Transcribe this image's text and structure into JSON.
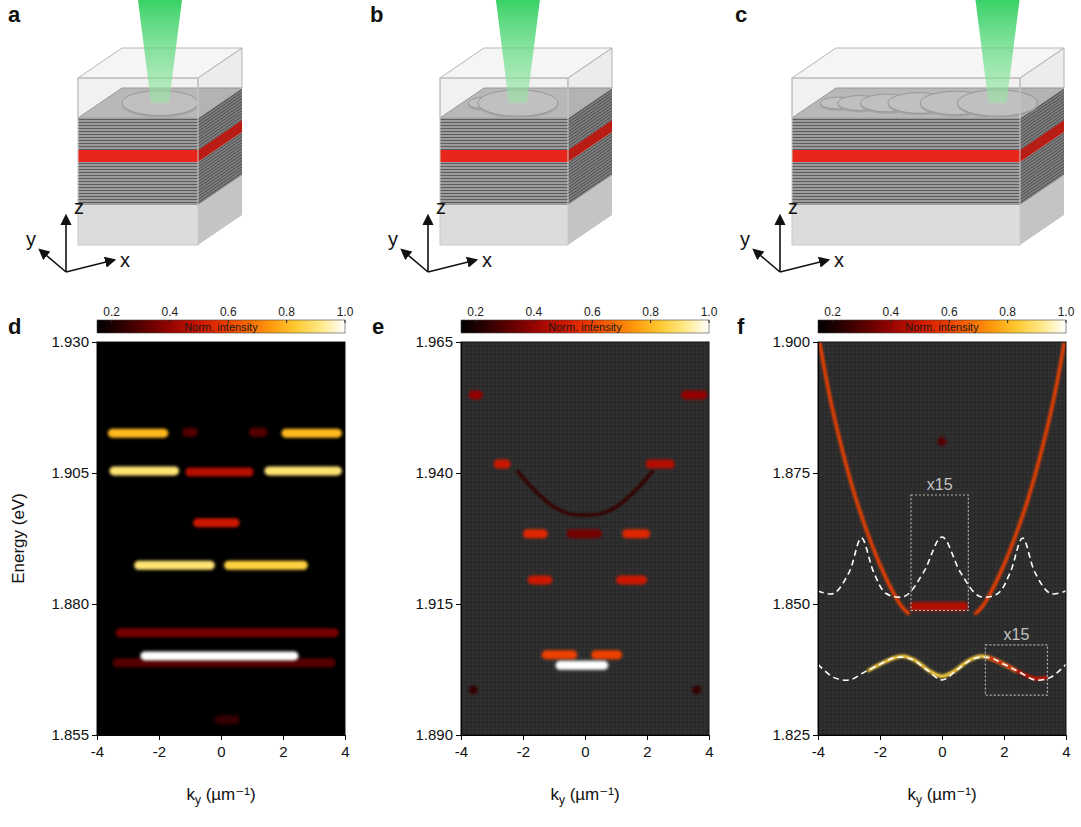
{
  "schematics": [
    {
      "label": "a",
      "disks": 1,
      "axes": [
        "x",
        "y",
        "z"
      ]
    },
    {
      "label": "b",
      "disks": 2,
      "axes": [
        "x",
        "y",
        "z"
      ]
    },
    {
      "label": "c",
      "disks": 6,
      "axes": [
        "x",
        "y",
        "z"
      ]
    }
  ],
  "chart_data": [
    {
      "type": "spectrum",
      "label": "d",
      "x_label": [
        "k",
        "y",
        " (µm⁻¹)"
      ],
      "y_label": "Energy (eV)",
      "xlim": [
        -4,
        4
      ],
      "xticks": [
        -4,
        -2,
        0,
        2,
        4
      ],
      "ylim": [
        1.855,
        1.93
      ],
      "yticks": [
        1.855,
        {
          "value": 1.88,
          "label": "1.880"
        },
        1.905,
        {
          "value": 1.93,
          "label": "1.930"
        }
      ],
      "colorbar": {
        "label": "Norm. intensity",
        "range": [
          0.15,
          1
        ],
        "ticks": [
          0.2,
          0.4,
          0.6,
          0.8,
          {
            "value": 1,
            "label": "1.0"
          }
        ]
      },
      "features": [
        {
          "k": [
            -3.65,
            -1.7
          ],
          "energy": 1.9126,
          "intensity": 0.8
        },
        {
          "k": [
            -1.25,
            -0.75
          ],
          "energy": 1.9128,
          "intensity": 0.3
        },
        {
          "k": [
            0.9,
            1.5
          ],
          "energy": 1.9128,
          "intensity": 0.3
        },
        {
          "k": [
            1.95,
            3.9
          ],
          "energy": 1.9126,
          "intensity": 0.8
        },
        {
          "k": [
            -3.6,
            -1.35
          ],
          "energy": 1.9054,
          "intensity": 0.9
        },
        {
          "k": [
            -1.15,
            1.05
          ],
          "energy": 1.9052,
          "intensity": 0.45
        },
        {
          "k": [
            1.4,
            3.9
          ],
          "energy": 1.9054,
          "intensity": 0.9
        },
        {
          "k": [
            -0.9,
            0.6
          ],
          "energy": 1.8955,
          "intensity": 0.5
        },
        {
          "k": [
            -2.8,
            -0.2
          ],
          "energy": 1.8874,
          "intensity": 0.9
        },
        {
          "k": [
            0.1,
            2.8
          ],
          "energy": 1.8874,
          "intensity": 0.85
        },
        {
          "k": [
            -3.4,
            3.8
          ],
          "energy": 1.8745,
          "intensity": 0.35
        },
        {
          "k": [
            -3.5,
            3.7
          ],
          "energy": 1.8688,
          "intensity": 0.3
        },
        {
          "k": [
            -2.6,
            2.5
          ],
          "energy": 1.8701,
          "intensity": 1.0
        },
        {
          "k": [
            -0.2,
            0.6
          ],
          "energy": 1.8579,
          "intensity": 0.25
        }
      ]
    },
    {
      "type": "spectrum",
      "label": "e",
      "x_label": [
        "k",
        "y",
        " (µm⁻¹)"
      ],
      "xlim": [
        -4,
        4
      ],
      "xticks": [
        -4,
        -2,
        0,
        2,
        4
      ],
      "ylim": [
        1.89,
        1.965
      ],
      "yticks": [
        {
          "value": 1.89,
          "label": "1.890"
        },
        1.915,
        {
          "value": 1.94,
          "label": "1.940"
        },
        1.965
      ],
      "colorbar": {
        "label": "Norm. intensity",
        "range": [
          0.15,
          1
        ],
        "ticks": [
          0.2,
          0.4,
          0.6,
          0.8,
          {
            "value": 1,
            "label": "1.0"
          }
        ]
      },
      "features": [
        {
          "k": [
            -3.75,
            -3.3
          ],
          "energy": 1.9549,
          "intensity": 0.4
        },
        {
          "k": [
            3.1,
            3.95
          ],
          "energy": 1.9549,
          "intensity": 0.4
        },
        {
          "k": [
            -2.95,
            -2.4
          ],
          "energy": 1.9417,
          "intensity": 0.5
        },
        {
          "k": [
            1.95,
            2.9
          ],
          "energy": 1.9417,
          "intensity": 0.45
        },
        {
          "k": [
            -2.0,
            -1.2
          ],
          "energy": 1.9284,
          "intensity": 0.55
        },
        {
          "k": [
            -0.6,
            0.55
          ],
          "energy": 1.9284,
          "intensity": 0.35
        },
        {
          "k": [
            1.2,
            2.1
          ],
          "energy": 1.9284,
          "intensity": 0.55
        },
        {
          "k": [
            -1.85,
            -1.05
          ],
          "energy": 1.9196,
          "intensity": 0.5
        },
        {
          "k": [
            1.0,
            2.0
          ],
          "energy": 1.9196,
          "intensity": 0.5
        },
        {
          "k": [
            -1.4,
            -0.25
          ],
          "energy": 1.9053,
          "intensity": 0.6
        },
        {
          "k": [
            0.2,
            1.2
          ],
          "energy": 1.9053,
          "intensity": 0.6
        },
        {
          "k": [
            -0.95,
            0.75
          ],
          "energy": 1.9033,
          "intensity": 1.0
        },
        {
          "k": [
            -3.75,
            -3.45
          ],
          "energy": 1.8986,
          "intensity": 0.25
        },
        {
          "k": [
            3.45,
            3.75
          ],
          "energy": 1.8986,
          "intensity": 0.25
        }
      ],
      "curves": [
        {
          "k": [
            -2.2,
            -1.6,
            -1,
            -0.5,
            0,
            0.5,
            1,
            1.6,
            2.2
          ],
          "energy": [
            1.9405,
            1.9365,
            1.9335,
            1.9322,
            1.932,
            1.9322,
            1.9335,
            1.9365,
            1.9405
          ],
          "intensity": 0.25,
          "line_style": "solid"
        }
      ]
    },
    {
      "type": "spectrum",
      "label": "f",
      "x_label": [
        "k",
        "y",
        " (µm⁻¹)"
      ],
      "xlim": [
        -4,
        4
      ],
      "xticks": [
        -4,
        -2,
        0,
        2,
        4
      ],
      "ylim": [
        1.825,
        1.9
      ],
      "yticks": [
        1.825,
        {
          "value": 1.85,
          "label": "1.850"
        },
        1.875,
        {
          "value": 1.9,
          "label": "1.900"
        }
      ],
      "colorbar": {
        "label": "Norm. intensity",
        "range": [
          0.15,
          1
        ],
        "ticks": [
          0.2,
          0.4,
          0.6,
          0.8,
          {
            "value": 1,
            "label": "1.0"
          }
        ]
      },
      "features": [
        {
          "k": [
            -1.05,
            0.85
          ],
          "energy": 1.8495,
          "intensity": 0.45
        },
        {
          "k": [
            -0.15,
            0.15
          ],
          "energy": 1.881,
          "intensity": 0.3
        }
      ],
      "curves": [
        {
          "k": [
            -3.95,
            -3.6,
            -3.2,
            -2.8,
            -2.4,
            -2.0,
            -1.6,
            -1.3,
            -1.05
          ],
          "energy": [
            1.9,
            1.889,
            1.879,
            1.8705,
            1.8635,
            1.8575,
            1.8525,
            1.8495,
            1.848
          ],
          "intensity": 0.6,
          "line_style": "solid"
        },
        {
          "k": [
            1.05,
            1.3,
            1.6,
            2.0,
            2.4,
            2.8,
            3.2,
            3.6,
            3.95
          ],
          "energy": [
            1.848,
            1.8495,
            1.8525,
            1.8575,
            1.8635,
            1.8705,
            1.879,
            1.889,
            1.9
          ],
          "intensity": 0.6,
          "line_style": "solid"
        },
        {
          "k": [
            -2.4,
            -2,
            -1.5,
            -1.2,
            -0.8,
            -0.4,
            0,
            0.4,
            0.8,
            1.2,
            1.5,
            2,
            2.4
          ],
          "energy": [
            1.8372,
            1.8385,
            1.8398,
            1.84,
            1.839,
            1.8372,
            1.8362,
            1.8372,
            1.839,
            1.84,
            1.8398,
            1.8385,
            1.8372
          ],
          "intensity": 0.85,
          "line_style": "solid"
        },
        {
          "k": [
            1.5,
            2.0,
            2.5,
            3.0,
            3.4
          ],
          "energy": [
            1.8398,
            1.8385,
            1.837,
            1.8358,
            1.836
          ],
          "intensity": 0.5,
          "line_style": "solid"
        },
        {
          "k": [
            -4,
            -3.5,
            -3,
            -2.6,
            -2.2,
            -1.8,
            -1.2,
            -0.6,
            0,
            0.6,
            1.2,
            1.8,
            2.2,
            2.6,
            3,
            3.5,
            4
          ],
          "energy": [
            1.8525,
            1.852,
            1.856,
            1.8626,
            1.856,
            1.852,
            1.8515,
            1.856,
            1.8628,
            1.856,
            1.8515,
            1.852,
            1.856,
            1.8626,
            1.856,
            1.852,
            1.8525
          ],
          "color": "#ffffff",
          "line_style": "dashed"
        },
        {
          "k": [
            -4,
            -3.5,
            -3,
            -2.5,
            -2,
            -1.5,
            -1,
            -0.5,
            0,
            0.5,
            1,
            1.5,
            2,
            2.5,
            3,
            3.5,
            4
          ],
          "energy": [
            1.8385,
            1.836,
            1.8355,
            1.837,
            1.8385,
            1.8398,
            1.8395,
            1.8375,
            1.8355,
            1.8375,
            1.8395,
            1.8398,
            1.8385,
            1.837,
            1.8355,
            1.836,
            1.8385
          ],
          "color": "#ffffff",
          "line_style": "dashed"
        }
      ],
      "annotations": [
        {
          "text": "x15",
          "k": [
            -1.0,
            0.85
          ],
          "energy": [
            1.8488,
            1.8708
          ]
        },
        {
          "text": "x15",
          "k": [
            1.4,
            3.4
          ],
          "energy": [
            1.8326,
            1.8422
          ]
        }
      ]
    }
  ]
}
